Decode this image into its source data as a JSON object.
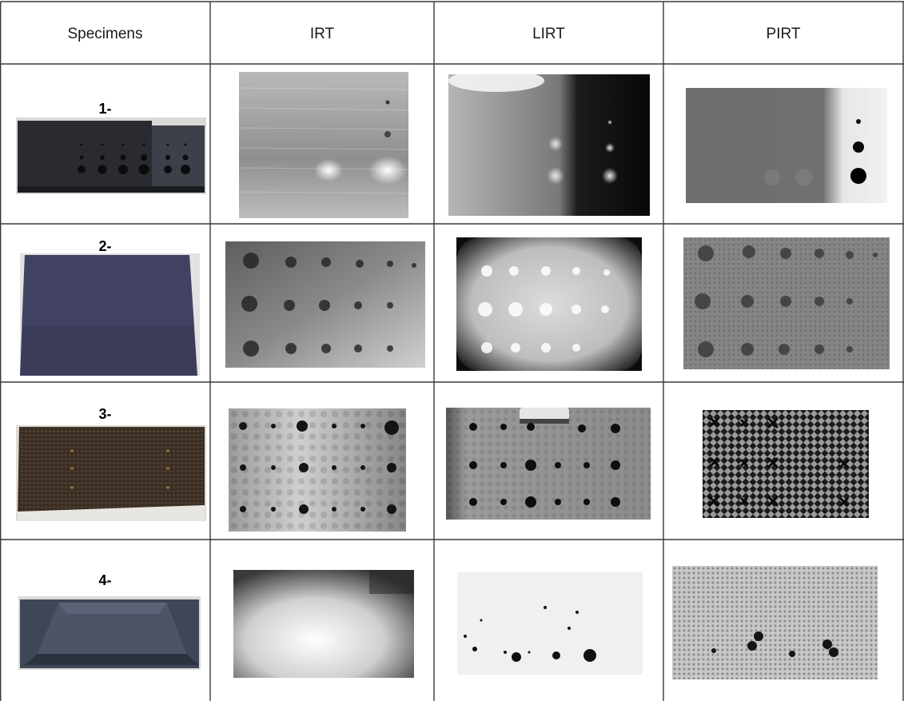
{
  "table": {
    "headers": [
      "Specimens",
      "IRT",
      "LIRT",
      "PIRT"
    ],
    "rows": [
      {
        "label": "1-"
      },
      {
        "label": "2-"
      },
      {
        "label": "3-"
      },
      {
        "label": "4-"
      }
    ]
  }
}
